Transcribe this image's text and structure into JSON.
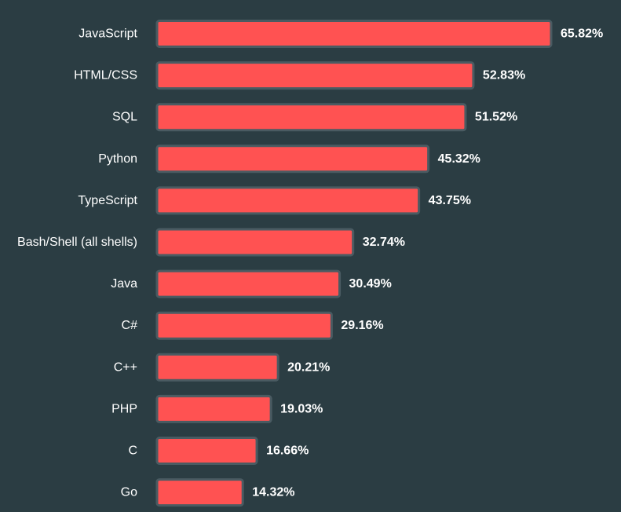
{
  "chart_data": {
    "type": "bar",
    "orientation": "horizontal",
    "title": "",
    "xlabel": "",
    "ylabel": "",
    "categories": [
      "JavaScript",
      "HTML/CSS",
      "SQL",
      "Python",
      "TypeScript",
      "Bash/Shell (all shells)",
      "Java",
      "C#",
      "C++",
      "PHP",
      "C",
      "Go"
    ],
    "values": [
      65.82,
      52.83,
      51.52,
      45.32,
      43.75,
      32.74,
      30.49,
      29.16,
      20.21,
      19.03,
      16.66,
      14.32
    ],
    "value_labels": [
      "65.82%",
      "52.83%",
      "51.52%",
      "45.32%",
      "43.75%",
      "32.74%",
      "30.49%",
      "29.16%",
      "20.21%",
      "19.03%",
      "16.66%",
      "14.32%"
    ],
    "xlim": [
      0,
      65.82
    ],
    "grid": false,
    "legend": "none",
    "colors": {
      "background": "#2b3d43",
      "bar_fill": "#ff5252",
      "bar_stroke": "#4a5b62",
      "text": "#ffffff"
    }
  }
}
